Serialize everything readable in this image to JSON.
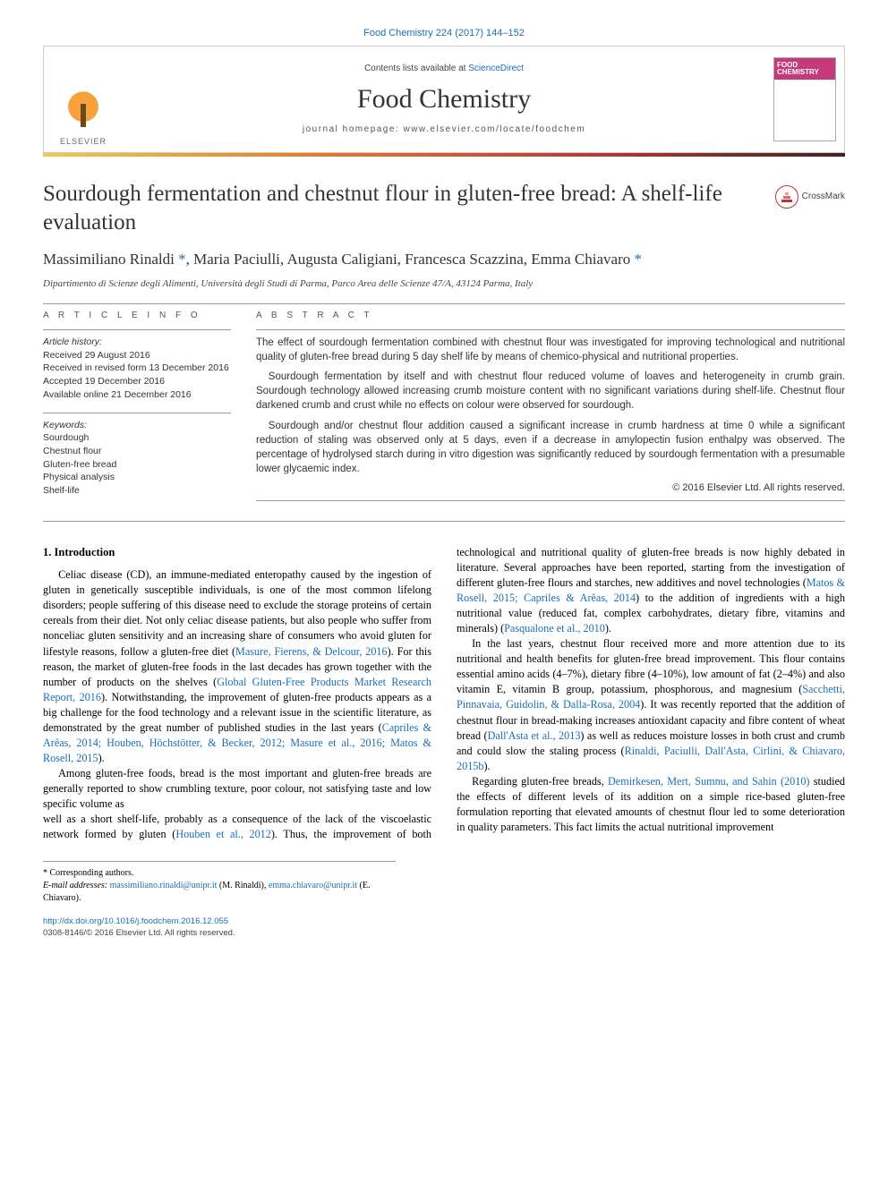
{
  "citation": "Food Chemistry 224 (2017) 144–152",
  "masthead": {
    "contents_prefix": "Contents lists available at ",
    "contents_link": "ScienceDirect",
    "journal": "Food Chemistry",
    "homepage_prefix": "journal homepage: ",
    "homepage_url": "www.elsevier.com/locate/foodchem",
    "publisher_word": "ELSEVIER",
    "cover_top1": "FOOD",
    "cover_top2": "CHEMISTRY"
  },
  "crossmark_label": "CrossMark",
  "title": "Sourdough fermentation and chestnut flour in gluten-free bread: A shelf-life evaluation",
  "authors_html": "Massimiliano Rinaldi|*|, Maria Paciulli, Augusta Caligiani, Francesca Scazzina, Emma Chiavaro|*|",
  "affiliation": "Dipartimento di Scienze degli Alimenti, Università degli Studi di Parma, Parco Area delle Scienze 47/A, 43124 Parma, Italy",
  "info_label": "A R T I C L E   I N F O",
  "abstract_label": "A B S T R A C T",
  "history_heading": "Article history:",
  "history": [
    "Received 29 August 2016",
    "Received in revised form 13 December 2016",
    "Accepted 19 December 2016",
    "Available online 21 December 2016"
  ],
  "keywords_heading": "Keywords:",
  "keywords": [
    "Sourdough",
    "Chestnut flour",
    "Gluten-free bread",
    "Physical analysis",
    "Shelf-life"
  ],
  "abstract": [
    "The effect of sourdough fermentation combined with chestnut flour was investigated for improving technological and nutritional quality of gluten-free bread during 5 day shelf life by means of chemico-physical and nutritional properties.",
    "Sourdough fermentation by itself and with chestnut flour reduced volume of loaves and heterogeneity in crumb grain. Sourdough technology allowed increasing crumb moisture content with no significant variations during shelf-life. Chestnut flour darkened crumb and crust while no effects on colour were observed for sourdough.",
    "Sourdough and/or chestnut flour addition caused a significant increase in crumb hardness at time 0 while a significant reduction of staling was observed only at 5 days, even if a decrease in amylopectin fusion enthalpy was observed. The percentage of hydrolysed starch during in vitro digestion was significantly reduced by sourdough fermentation with a presumable lower glycaemic index."
  ],
  "copyright": "© 2016 Elsevier Ltd. All rights reserved.",
  "section_heading": "1. Introduction",
  "body": {
    "p1a": "Celiac disease (CD), an immune-mediated enteropathy caused by the ingestion of gluten in genetically susceptible individuals, is one of the most common lifelong disorders; people suffering of this disease need to exclude the storage proteins of certain cereals from their diet. Not only celiac disease patients, but also people who suffer from nonceliac gluten sensitivity and an increasing share of consumers who avoid gluten for lifestyle reasons, follow a gluten-free diet (",
    "p1c1": "Masure, Fierens, & Delcour, 2016",
    "p1b": "). For this reason, the market of gluten-free foods in the last decades has grown together with the number of products on the shelves (",
    "p1c2": "Global Gluten-Free Products Market Research Report, 2016",
    "p1c": "). Notwithstanding, the improvement of gluten-free products appears as a big challenge for the food technology and a relevant issue in the scientific literature, as demonstrated by the great number of published studies in the last years (",
    "p1c3": "Capriles & Arêas, 2014; Houben, Höchstötter, & Becker, 2012; Masure et al., 2016; Matos & Rosell, 2015",
    "p1d": ").",
    "p2": "Among gluten-free foods, bread is the most important and gluten-free breads are generally reported to show crumbling texture, poor colour, not satisfying taste and low specific volume as",
    "p3a": "well as a short shelf-life, probably as a consequence of the lack of the viscoelastic network formed by gluten (",
    "p3c1": "Houben et al., 2012",
    "p3b": "). Thus, the improvement of both technological and nutritional quality of gluten-free breads is now highly debated in literature. Several approaches have been reported, starting from the investigation of different gluten-free flours and starches, new additives and novel technologies (",
    "p3c2": "Matos & Rosell, 2015; Capriles & Arêas, 2014",
    "p3c": ") to the addition of ingredients with a high nutritional value (reduced fat, complex carbohydrates, dietary fibre, vitamins and minerals) (",
    "p3c3": "Pasqualone et al., 2010",
    "p3d": ").",
    "p4a": "In the last years, chestnut flour received more and more attention due to its nutritional and health benefits for gluten-free bread improvement. This flour contains essential amino acids (4–7%), dietary fibre (4–10%), low amount of fat (2–4%) and also vitamin E, vitamin B group, potassium, phosphorous, and magnesium (",
    "p4c1": "Sacchetti, Pinnavaia, Guidolin, & Dalla-Rosa, 2004",
    "p4b": "). It was recently reported that the addition of chestnut flour in bread-making increases antioxidant capacity and fibre content of wheat bread (",
    "p4c2": "Dall'Asta et al., 2013",
    "p4c": ") as well as reduces moisture losses in both crust and crumb and could slow the staling process (",
    "p4c3": "Rinaldi, Paciulli, Dall'Asta, Cirlini, & Chiavaro, 2015b",
    "p4d": ").",
    "p5a": "Regarding gluten-free breads, ",
    "p5c1": "Demirkesen, Mert, Sumnu, and Sahin (2010)",
    "p5b": " studied the effects of different levels of its addition on a simple rice-based gluten-free formulation reporting that elevated amounts of chestnut flour led to some deterioration in quality parameters. This fact limits the actual nutritional improvement"
  },
  "footnotes": {
    "corr_label": "* Corresponding authors.",
    "email_label": "E-mail addresses:",
    "email1": "massimiliano.rinaldi@unipr.it",
    "email1_who": " (M. Rinaldi), ",
    "email2": "emma.chiavaro@unipr.it",
    "email2_who": " (E. Chiavaro)."
  },
  "footer": {
    "doi": "http://dx.doi.org/10.1016/j.foodchem.2016.12.055",
    "issn_line": "0308-8146/© 2016 Elsevier Ltd. All rights reserved."
  }
}
